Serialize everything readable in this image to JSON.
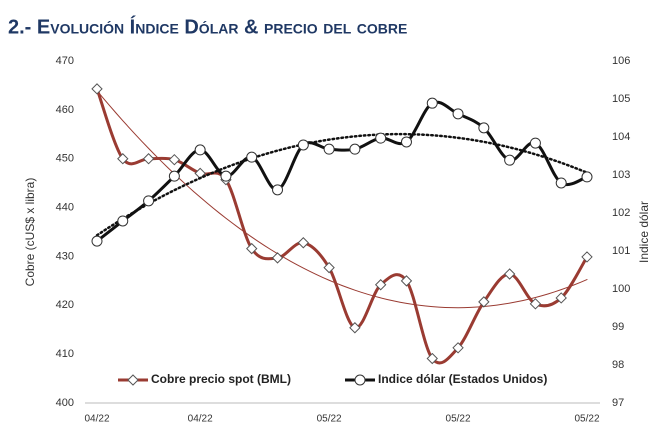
{
  "chart_data": {
    "type": "line",
    "title": "2.- Evolución Índice Dólar & precio del cobre",
    "y_label": "Cobre (cUS$ x libra)",
    "y2_label": "Indice dólar",
    "categories": [
      "04/22",
      null,
      null,
      null,
      "04/22",
      null,
      null,
      null,
      null,
      "05/22",
      null,
      null,
      null,
      null,
      "05/22",
      null,
      null,
      null,
      null,
      "05/22"
    ],
    "series": [
      {
        "name": "Cobre precio spot (BML)",
        "color": "#9a3b32",
        "axis": "y",
        "trendline": true,
        "values": [
          464.3,
          450,
          450,
          449.8,
          447,
          445.7,
          431.6,
          429.7,
          432.8,
          427.7,
          415.4,
          424.2,
          425,
          409.1,
          411.3,
          420.7,
          426.4,
          420.3,
          421.5,
          429.9
        ]
      },
      {
        "name": "Indice dólar (Estados Unidos)",
        "color": "#111111",
        "axis": "y2",
        "trendline": true,
        "values": [
          101.26,
          101.79,
          102.32,
          102.97,
          103.66,
          102.97,
          103.47,
          102.61,
          103.79,
          103.68,
          103.68,
          103.97,
          103.87,
          104.89,
          104.61,
          104.24,
          103.39,
          103.84,
          102.79,
          102.95
        ]
      }
    ],
    "ylim": [
      400,
      470
    ],
    "yticks": [
      400,
      410,
      420,
      430,
      440,
      450,
      460,
      470
    ],
    "y2lim": [
      97,
      106
    ],
    "y2ticks": [
      97,
      98,
      99,
      100,
      101,
      102,
      103,
      104,
      105,
      106
    ],
    "grid": false
  }
}
